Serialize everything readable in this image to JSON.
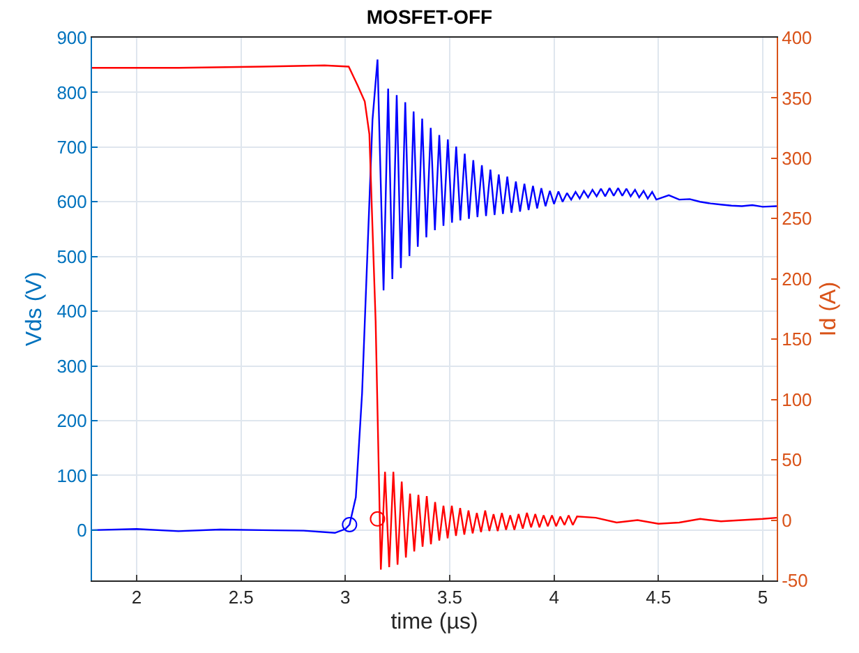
{
  "chart_data": {
    "type": "line",
    "title": "MOSFET-OFF",
    "xlabel": "time (µs)",
    "ylabel": "Vds (V)",
    "y2label": "Id (A)",
    "xlim": [
      1.786,
      5.067
    ],
    "xticks": [
      2,
      2.5,
      3,
      3.5,
      4,
      4.5,
      5
    ],
    "ylim": [
      -92,
      900
    ],
    "yticks": [
      0,
      100,
      200,
      300,
      400,
      500,
      600,
      700,
      800,
      900
    ],
    "y2lim": [
      -50,
      400
    ],
    "y2ticks": [
      -50,
      0,
      50,
      100,
      150,
      200,
      250,
      300,
      350,
      400
    ],
    "grid": true,
    "line_style": "solid",
    "series": [
      {
        "marker": "none",
        "color": "#0000ff",
        "axis": "y",
        "x": [
          1.786,
          2.0,
          2.2,
          2.4,
          2.6,
          2.8,
          2.95,
          3.0,
          3.02,
          3.05,
          3.08,
          3.11,
          3.13,
          3.154,
          3.183,
          3.205,
          3.225,
          3.246,
          3.266,
          3.287,
          3.307,
          3.327,
          3.347,
          3.368,
          3.388,
          3.409,
          3.429,
          3.45,
          3.47,
          3.491,
          3.511,
          3.531,
          3.551,
          3.572,
          3.592,
          3.613,
          3.633,
          3.654,
          3.674,
          3.695,
          3.715,
          3.735,
          3.755,
          3.776,
          3.796,
          3.817,
          3.837,
          3.858,
          3.878,
          3.899,
          3.919,
          3.939,
          3.959,
          3.98,
          4.0,
          4.021,
          4.041,
          4.062,
          4.082,
          4.103,
          4.123,
          4.143,
          4.163,
          4.184,
          4.204,
          4.225,
          4.245,
          4.266,
          4.286,
          4.307,
          4.327,
          4.347,
          4.367,
          4.388,
          4.408,
          4.429,
          4.449,
          4.47,
          4.49,
          4.55,
          4.6,
          4.65,
          4.7,
          4.75,
          4.8,
          4.85,
          4.9,
          4.95,
          5.0,
          5.067
        ],
        "values": [
          0,
          2,
          -2,
          1,
          0,
          -1,
          -5,
          2,
          10,
          60,
          250,
          550,
          750,
          860,
          438,
          807,
          459,
          795,
          479,
          782,
          501,
          765,
          518,
          752,
          535,
          735,
          548,
          722,
          556,
          714,
          562,
          701,
          566,
          688,
          569,
          676,
          572,
          667,
          574,
          659,
          576,
          650,
          578,
          646,
          580,
          637,
          582,
          633,
          585,
          629,
          588,
          625,
          592,
          620,
          596,
          619,
          600,
          616,
          604,
          618,
          606,
          620,
          608,
          622,
          610,
          624,
          610,
          625,
          611,
          625,
          611,
          624,
          610,
          622,
          608,
          620,
          606,
          618,
          604,
          612,
          604,
          605,
          600,
          597,
          595,
          593,
          592,
          594,
          591,
          592
        ]
      },
      {
        "marker": "none",
        "color": "#ff0000",
        "axis": "y2",
        "x": [
          1.786,
          2.2,
          2.6,
          2.9,
          3.016,
          3.06,
          3.093,
          3.115,
          3.13,
          3.145,
          3.17,
          3.19,
          3.21,
          3.23,
          3.25,
          3.27,
          3.29,
          3.31,
          3.33,
          3.35,
          3.37,
          3.39,
          3.41,
          3.43,
          3.45,
          3.47,
          3.49,
          3.51,
          3.53,
          3.55,
          3.57,
          3.59,
          3.61,
          3.63,
          3.65,
          3.67,
          3.69,
          3.71,
          3.73,
          3.75,
          3.77,
          3.79,
          3.81,
          3.83,
          3.85,
          3.87,
          3.89,
          3.91,
          3.93,
          3.95,
          3.97,
          3.99,
          4.01,
          4.03,
          4.05,
          4.07,
          4.09,
          4.11,
          4.2,
          4.3,
          4.4,
          4.5,
          4.6,
          4.7,
          4.8,
          4.9,
          5.0,
          5.067
        ],
        "values": [
          375,
          375,
          376,
          377,
          376,
          360,
          347,
          320,
          242,
          165,
          -41,
          40,
          -39,
          40,
          -37,
          32,
          -31,
          22,
          -26,
          21,
          -22,
          20,
          -20,
          15,
          -17,
          12,
          -15,
          12,
          -13,
          10,
          -12,
          8,
          -11,
          6,
          -10,
          8,
          -9,
          5,
          -9,
          6,
          -8,
          4,
          -8,
          5,
          -7,
          6,
          -6,
          5,
          -6,
          4,
          -5,
          4,
          -5,
          3,
          -4,
          4,
          -4,
          3,
          2,
          -2,
          0,
          -3,
          -2,
          1,
          -1,
          0,
          1,
          2
        ]
      },
      {
        "type": "scatter",
        "marker": "circle",
        "color": "#0000ff",
        "axis": "y",
        "x": [
          3.02
        ],
        "values": [
          10
        ]
      },
      {
        "type": "scatter",
        "marker": "circle",
        "color": "#ff0000",
        "axis": "y2",
        "x": [
          3.154
        ],
        "values": [
          1
        ]
      }
    ]
  }
}
